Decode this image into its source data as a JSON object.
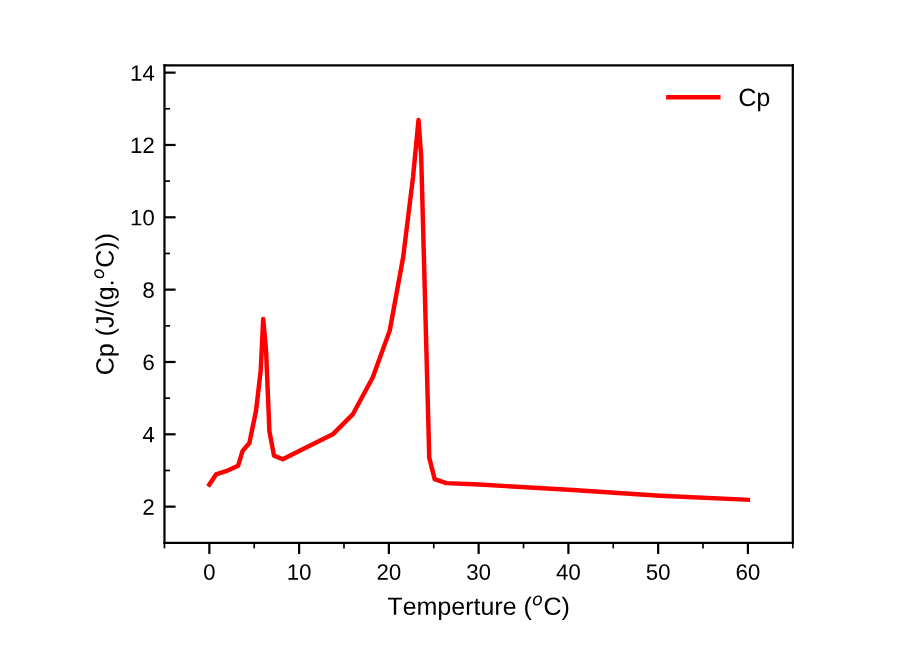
{
  "chart_data": {
    "type": "line",
    "xlabel": "Temperture ($^{o}$C)",
    "ylabel": "Cp (J/(g.$^{o}$C))",
    "x": [
      0,
      0.74,
      1.86,
      3.2,
      3.7,
      4.46,
      5.2,
      5.72,
      6.0,
      6.32,
      6.69,
      7.2,
      8.18,
      10.0,
      13.75,
      16.0,
      18.2,
      20.1,
      21.6,
      22.7,
      23.3,
      23.6,
      24.2,
      24.5,
      25.1,
      26.4,
      30.1,
      40.5,
      50.2,
      60.0
    ],
    "series": [
      {
        "name": "Cp",
        "color": "#ff0000",
        "values": [
          2.61,
          2.89,
          2.98,
          3.13,
          3.54,
          3.76,
          4.65,
          5.76,
          7.19,
          6.31,
          4.09,
          3.41,
          3.31,
          3.54,
          4.0,
          4.56,
          5.57,
          6.87,
          8.91,
          11.13,
          12.69,
          11.69,
          6.13,
          3.35,
          2.76,
          2.65,
          2.61,
          2.46,
          2.3,
          2.19
        ]
      }
    ],
    "xlim": [
      -5,
      65
    ],
    "ylim": [
      1,
      14.2
    ],
    "xticks": [
      0,
      10,
      20,
      30,
      40,
      50,
      60
    ],
    "yticks": [
      2,
      4,
      6,
      8,
      10,
      12,
      14
    ],
    "grid": false,
    "legend": "top right",
    "marker": "none",
    "line_style": "solid"
  }
}
